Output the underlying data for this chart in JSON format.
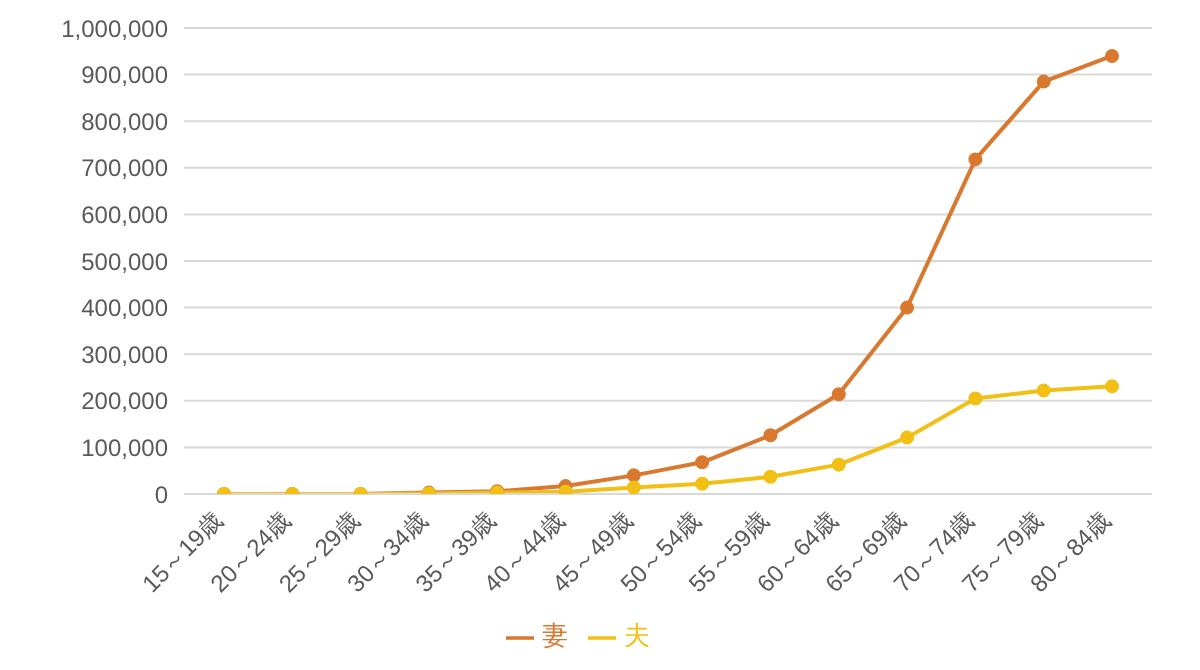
{
  "chart_data": {
    "type": "line",
    "categories": [
      "15～19歳",
      "20～24歳",
      "25～29歳",
      "30～34歳",
      "35～39歳",
      "40～44歳",
      "45～49歳",
      "50～54歳",
      "55～59歳",
      "60～64歳",
      "65～69歳",
      "70～74歳",
      "75～79歳",
      "80～84歳"
    ],
    "series": [
      {
        "name": "妻",
        "color": "#d9782f",
        "values": [
          0,
          0,
          0,
          3000,
          6000,
          17000,
          40000,
          68000,
          126000,
          214000,
          400000,
          718000,
          885000,
          940000
        ]
      },
      {
        "name": "夫",
        "color": "#f2c014",
        "values": [
          0,
          0,
          0,
          1000,
          3000,
          5000,
          14000,
          22000,
          37000,
          63000,
          121000,
          205000,
          222000,
          231000
        ]
      }
    ],
    "ylim": [
      0,
      1000000
    ],
    "yticks": [
      0,
      {
        "value": 100000,
        "label": "100,000"
      },
      {
        "value": 200000,
        "label": "200,000"
      },
      {
        "value": 300000,
        "label": "300,000"
      },
      {
        "value": 400000,
        "label": "400,000"
      },
      {
        "value": 500000,
        "label": "500,000"
      },
      {
        "value": 600000,
        "label": "600,000"
      },
      {
        "value": 700000,
        "label": "700,000"
      },
      {
        "value": 800000,
        "label": "800,000"
      },
      {
        "value": 900000,
        "label": "900,000"
      },
      {
        "value": 1000000,
        "label": "1,000,000"
      }
    ],
    "grid": "y",
    "legend": "bottom",
    "marker": "circle",
    "line_style": "solid"
  }
}
